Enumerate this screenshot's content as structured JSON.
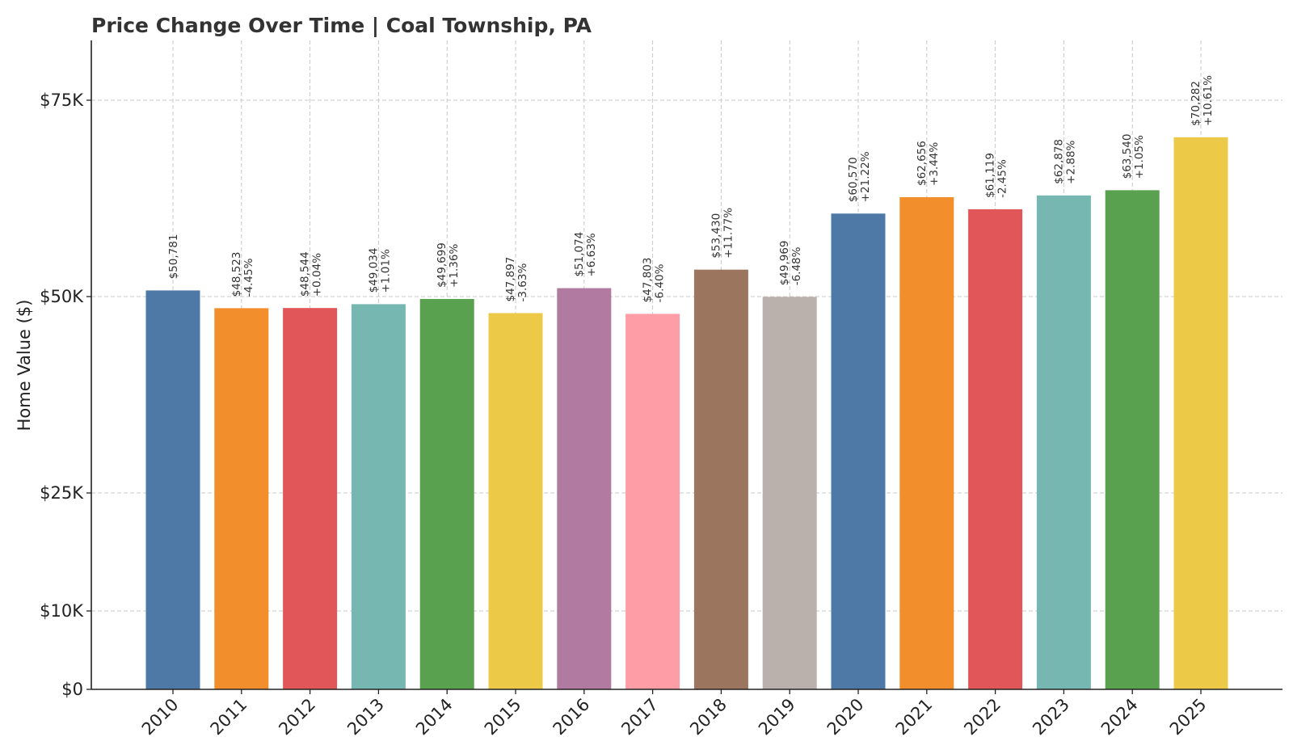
{
  "chart_data": {
    "type": "bar",
    "title": "Price Change Over Time | Coal Township, PA",
    "xlabel": "",
    "ylabel": "Home Value ($)",
    "ylim": [
      0,
      83000
    ],
    "yticks": [
      {
        "value": 0,
        "label": "$0"
      },
      {
        "value": 10000,
        "label": "$10K"
      },
      {
        "value": 25000,
        "label": "$25K"
      },
      {
        "value": 50000,
        "label": "$50K"
      },
      {
        "value": 75000,
        "label": "$75K"
      }
    ],
    "grid": true,
    "categories": [
      "2010",
      "2011",
      "2012",
      "2013",
      "2014",
      "2015",
      "2016",
      "2017",
      "2018",
      "2019",
      "2020",
      "2021",
      "2022",
      "2023",
      "2024",
      "2025"
    ],
    "values": [
      50781,
      48523,
      48544,
      49034,
      49699,
      47897,
      51074,
      47803,
      53430,
      49969,
      60570,
      62656,
      61119,
      62878,
      63540,
      70282
    ],
    "value_labels": [
      "$50,781",
      "$48,523",
      "$48,544",
      "$49,034",
      "$49,699",
      "$47,897",
      "$51,074",
      "$47,803",
      "$53,430",
      "$49,969",
      "$60,570",
      "$62,656",
      "$61,119",
      "$62,878",
      "$63,540",
      "$70,282"
    ],
    "change_labels": [
      "",
      "-4.45%",
      "+0.04%",
      "+1.01%",
      "+1.36%",
      "-3.63%",
      "+6.63%",
      "-6.40%",
      "+11.77%",
      "-6.48%",
      "+21.22%",
      "+3.44%",
      "-2.45%",
      "+2.88%",
      "+1.05%",
      "+10.61%"
    ],
    "colors": [
      "#4e79a7",
      "#f28e2b",
      "#e15759",
      "#76b7b2",
      "#59a14f",
      "#edc948",
      "#b07aa1",
      "#ff9da7",
      "#9c755f",
      "#bab0ac",
      "#4e79a7",
      "#f28e2b",
      "#e15759",
      "#76b7b2",
      "#59a14f",
      "#edc948"
    ]
  }
}
